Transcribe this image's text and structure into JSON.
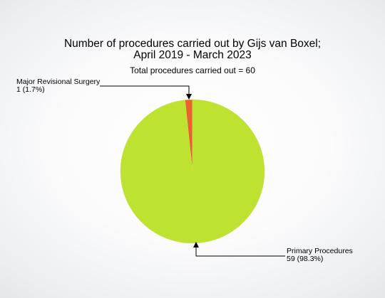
{
  "chart_data": {
    "type": "pie",
    "title_lines": [
      "Number of procedures carried out by Gijs van Boxel;",
      "April 2019 - March 2023"
    ],
    "subtitle": "Total procedures carried out = 60",
    "slices": [
      {
        "label": "Major Revisional Surgery",
        "value": 1,
        "value_text": "1 (1.7%)",
        "color": "#e8622e"
      },
      {
        "label": "Primary Procedures",
        "value": 59,
        "value_text": "59 (98.3%)",
        "color": "#bde22f"
      }
    ],
    "legend": "none"
  }
}
